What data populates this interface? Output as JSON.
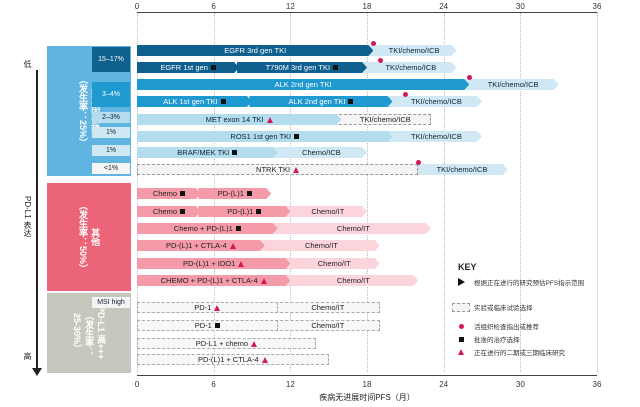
{
  "axis": {
    "ticks": [
      "0",
      "6",
      "12",
      "18",
      "24",
      "30",
      "36"
    ],
    "title": "疾病无进展时间PFS（月）"
  },
  "side": {
    "title": "PD-L1 表达",
    "low_label": "低",
    "high_label": "高"
  },
  "groups": [
    {
      "label": "癌基因依赖\n（发生率：25%）",
      "color": "#5fb4e0"
    },
    {
      "label": "其他\n（发生率：50%）",
      "color": "#ec6478"
    },
    {
      "label": "PD-L1 高+++\n（发生率：\n25-30%）",
      "color": "#c5c9bd"
    }
  ],
  "percents": [
    "15–17%",
    "3–4%",
    "2–3%",
    "1%",
    "1%",
    "<1%",
    "MSI high"
  ],
  "rows": [
    {
      "seg1": {
        "label": "EGFR 3rd gen TKI",
        "end": 18.5,
        "style": "c-dark",
        "marker": ""
      },
      "seg2": {
        "label": "TKI/chemo/ICB",
        "end": 25,
        "style": "c-lighter"
      },
      "dot": 18.5
    },
    {
      "seg1": {
        "label": "EGFR 1st gen",
        "end": 8,
        "style": "c-dark",
        "marker": "sq"
      },
      "mid": {
        "label": "T790M 3rd gen TKI",
        "end": 18,
        "style": "c-dark",
        "marker": "sq"
      },
      "seg2": {
        "label": "TKI/chemo/ICB",
        "end": 25,
        "style": "c-lighter"
      },
      "dot": 19
    },
    {
      "seg1": {
        "label": "ALK 2nd gen TKI",
        "end": 26,
        "style": "c-mid",
        "marker": ""
      },
      "seg2": {
        "label": "TKI/chemo/ICB",
        "end": 33,
        "style": "c-lighter"
      },
      "dot": 26
    },
    {
      "seg1": {
        "label": "ALK 1st gen TKI",
        "end": 9,
        "style": "c-mid",
        "marker": "sq"
      },
      "mid": {
        "label": "ALK 2nd gen TKI",
        "end": 20,
        "style": "c-mid",
        "marker": "sq"
      },
      "seg2": {
        "label": "TKI/chemo/ICB",
        "end": 27,
        "style": "c-lighter"
      },
      "dot": 21
    },
    {
      "seg1": {
        "label": "MET exon 14 TKI",
        "end": 16,
        "style": "c-light",
        "marker": "tri"
      },
      "seg2": {
        "label": "TKI/chemo/ICB",
        "end": 23,
        "style": "c-outline"
      },
      "dot": null
    },
    {
      "seg1": {
        "label": "ROS1 1st gen TKI",
        "end": 20,
        "style": "c-light",
        "marker": "sq"
      },
      "seg2": {
        "label": "TKI/chemo/ICB",
        "end": 27,
        "style": "c-lighter"
      },
      "dot": null
    },
    {
      "seg1": {
        "label": "BRAF/MEK TKI",
        "end": 11,
        "style": "c-light",
        "marker": "sq"
      },
      "seg2": {
        "label": "Chemo/ICB",
        "end": 18,
        "style": "c-lighter"
      },
      "dot": null
    },
    {
      "seg1": {
        "label": "NTRK TKI",
        "end": 22,
        "style": "c-outline",
        "marker": "tri"
      },
      "seg2": {
        "label": "TKI/chemo/ICB",
        "end": 29,
        "style": "c-lighter"
      },
      "dot": 22
    },
    {
      "seg1": {
        "label": "Chemo",
        "end": 5,
        "style": "c-pink",
        "marker": "sq"
      },
      "mid": {
        "label": "PD-(L)1",
        "end": 10.5,
        "style": "c-pink",
        "marker": "sq"
      },
      "seg2": null,
      "dot": null
    },
    {
      "seg1": {
        "label": "Chemo",
        "end": 5,
        "style": "c-pink",
        "marker": "sq"
      },
      "mid": {
        "label": "PD-(L)1",
        "end": 12,
        "style": "c-pink",
        "marker": "sq"
      },
      "seg2": {
        "label": "Chemo/IT",
        "end": 18,
        "style": "c-pinklight"
      },
      "dot": null
    },
    {
      "seg1": {
        "label": "Chemo + PD-(L)1",
        "end": 11,
        "style": "c-pink",
        "marker": "sq"
      },
      "seg2": {
        "label": "Chemo/IT",
        "end": 23,
        "style": "c-pinklight"
      },
      "dot": null
    },
    {
      "seg1": {
        "label": "PD-(L)1 + CTLA-4",
        "end": 10,
        "style": "c-pink",
        "marker": "tri"
      },
      "seg2": {
        "label": "Chemo/IT",
        "end": 19,
        "style": "c-pinklight"
      },
      "dot": null
    },
    {
      "seg1": {
        "label": "PD-(L)1 + IDO1",
        "end": 12,
        "style": "c-pink",
        "marker": "tri"
      },
      "seg2": {
        "label": "Chemo/IT",
        "end": 19,
        "style": "c-pinklight"
      },
      "dot": null
    },
    {
      "seg1": {
        "label": "CHEMO + PD-(L)1 + CTLA-4",
        "end": 12,
        "style": "c-pink",
        "marker": "tri"
      },
      "seg2": {
        "label": "Chemo/IT",
        "end": 22,
        "style": "c-pinklight"
      },
      "dot": null
    },
    {
      "seg1": {
        "label": "PD-1",
        "end": 11,
        "style": "c-outline2",
        "marker": "tri"
      },
      "seg2": {
        "label": "Chemo/IT",
        "end": 19,
        "style": "c-outline2"
      },
      "dot": null
    },
    {
      "seg1": {
        "label": "PD-1",
        "end": 11,
        "style": "c-outline2",
        "marker": "sq"
      },
      "seg2": {
        "label": "Chemo/IT",
        "end": 19,
        "style": "c-outline2"
      },
      "dot": null
    },
    {
      "seg1": {
        "label": "PD-L1 + chemo",
        "end": 14,
        "style": "c-outline2",
        "marker": "tri"
      },
      "seg2": null,
      "dot": null
    },
    {
      "seg1": {
        "label": "PD-(L)1 + CTLA-4",
        "end": 15,
        "style": "c-outline2",
        "marker": "tri"
      },
      "seg2": null,
      "dot": null
    }
  ],
  "key": {
    "title": "KEY",
    "items": [
      {
        "sym": "chevron",
        "text": "根据正在进行的研究预估PFS指示范围"
      },
      {
        "sym": "dashbar",
        "text": "实验或临床试验选择"
      },
      {
        "sym": "dot",
        "text": "活组织检查指出或推荐"
      },
      {
        "sym": "sq",
        "text": "批准的治疗选择"
      },
      {
        "sym": "tri",
        "text": "正在进行的二期或三期临床研究"
      }
    ]
  }
}
